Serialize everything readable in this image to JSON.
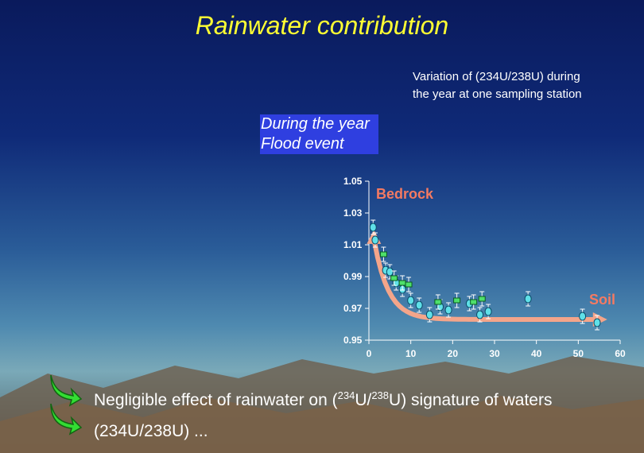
{
  "slide": {
    "title": "Rainwater contribution",
    "caption_line1": "Variation of (234U/238U) during",
    "caption_line2": "the year at one sampling station",
    "legend": {
      "year": "During the year",
      "flood": "Flood event"
    },
    "colors": {
      "title": "#ffff33",
      "year_highlight": "#2f3fe0",
      "arrow": "#f4a58a",
      "label": "#f47a62",
      "point": "#5fe0e8",
      "flood_point": "#4ee06a"
    },
    "bullet1": {
      "pre": "Negligible effect of rainwater on (",
      "iso1": "234",
      "mid": "U/",
      "iso2": "238",
      "post": "U) signature of waters"
    },
    "bullet2_partial": "(234U/238U) ... "
  },
  "chart_data": {
    "type": "scatter",
    "title": "",
    "xlabel": "",
    "ylabel": "",
    "xlim": [
      0,
      60
    ],
    "ylim": [
      0.95,
      1.05
    ],
    "x_ticks": [
      "0",
      "10",
      "20",
      "30",
      "40",
      "50",
      "60"
    ],
    "y_ticks": [
      "1.05",
      "1.03",
      "1.01",
      "0.99",
      "0.97",
      "0.95"
    ],
    "annotations": [
      "Bedrock",
      "Soil"
    ],
    "series": [
      {
        "name": "During the year",
        "x": [
          1.0,
          1.5,
          4.0,
          5.0,
          6.5,
          8.0,
          10.0,
          12.0,
          14.5,
          17.0,
          19.0,
          24.0,
          26.5,
          28.5,
          38.0,
          51.0,
          54.5
        ],
        "y": [
          1.021,
          1.013,
          0.994,
          0.993,
          0.986,
          0.982,
          0.975,
          0.972,
          0.966,
          0.971,
          0.969,
          0.973,
          0.966,
          0.968,
          0.976,
          0.965,
          0.961
        ]
      },
      {
        "name": "Flood event",
        "x": [
          3.5,
          6.0,
          8.0,
          9.5,
          16.5,
          21.0,
          25.0,
          27.0
        ],
        "y": [
          1.004,
          0.989,
          0.986,
          0.985,
          0.974,
          0.975,
          0.974,
          0.976
        ]
      }
    ]
  }
}
